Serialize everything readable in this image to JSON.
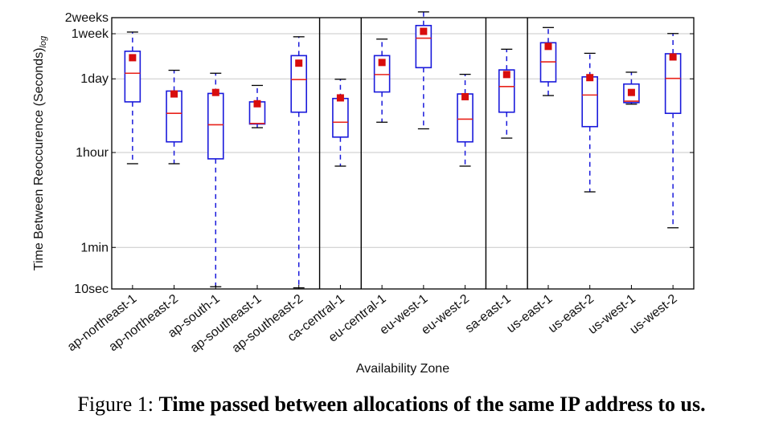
{
  "chart_data": {
    "type": "box",
    "title": "",
    "xlabel": "Availability Zone",
    "ylabel": "Time Between Reoccurence (Seconds)",
    "ylabel_sub": "log",
    "yscale": "log",
    "ylim_seconds": [
      10,
      1209600
    ],
    "y_ticks": [
      {
        "label": "10sec",
        "seconds": 10
      },
      {
        "label": "1min",
        "seconds": 60
      },
      {
        "label": "1hour",
        "seconds": 3600
      },
      {
        "label": "1day",
        "seconds": 86400
      },
      {
        "label": "1week",
        "seconds": 604800
      },
      {
        "label": "2weeks",
        "seconds": 1209600
      }
    ],
    "grid": true,
    "group_separators_after": [
      "ap-southeast-2",
      "ca-central-1",
      "eu-west-2",
      "sa-east-1"
    ],
    "box_color": "#1a1adb",
    "median_color": "#e8221a",
    "mean_marker_color": "#d80d0d",
    "boxes": [
      {
        "zone": "ap-northeast-1",
        "whisker_low": 2220,
        "q1": 32000,
        "median": 110000,
        "q3": 284000,
        "whisker_high": 650000,
        "mean": 215000
      },
      {
        "zone": "ap-northeast-2",
        "whisker_low": 2220,
        "q1": 5700,
        "median": 19500,
        "q3": 51000,
        "whisker_high": 125000,
        "mean": 45000
      },
      {
        "zone": "ap-south-1",
        "whisker_low": 11,
        "q1": 2740,
        "median": 11900,
        "q3": 46000,
        "whisker_high": 110000,
        "mean": 48000
      },
      {
        "zone": "ap-southeast-1",
        "whisker_low": 10500,
        "q1": 12300,
        "median": 12600,
        "q3": 32000,
        "whisker_high": 65000,
        "mean": 29500
      },
      {
        "zone": "ap-southeast-2",
        "whisker_low": 10.5,
        "q1": 20500,
        "median": 84000,
        "q3": 235000,
        "whisker_high": 530000,
        "mean": 170000
      },
      {
        "zone": "ca-central-1",
        "whisker_low": 2000,
        "q1": 7000,
        "median": 13300,
        "q3": 37000,
        "whisker_high": 85000,
        "mean": 38000
      },
      {
        "zone": "eu-central-1",
        "whisker_low": 13300,
        "q1": 49000,
        "median": 104000,
        "q3": 235000,
        "whisker_high": 480000,
        "mean": 175000
      },
      {
        "zone": "eu-west-1",
        "whisker_low": 10000,
        "q1": 140000,
        "median": 500000,
        "q3": 862000,
        "whisker_high": 1550000,
        "mean": 670000
      },
      {
        "zone": "eu-west-2",
        "whisker_low": 2000,
        "q1": 5700,
        "median": 15200,
        "q3": 45000,
        "whisker_high": 105000,
        "mean": 40000
      },
      {
        "zone": "sa-east-1",
        "whisker_low": 6700,
        "q1": 20500,
        "median": 62000,
        "q3": 127000,
        "whisker_high": 310000,
        "mean": 104000
      },
      {
        "zone": "us-east-1",
        "whisker_low": 42000,
        "q1": 76000,
        "median": 180000,
        "q3": 410000,
        "whisker_high": 790000,
        "mean": 350000
      },
      {
        "zone": "us-east-2",
        "whisker_low": 660,
        "q1": 11000,
        "median": 43000,
        "q3": 94000,
        "whisker_high": 260000,
        "mean": 91000
      },
      {
        "zone": "us-west-1",
        "whisker_low": 29000,
        "q1": 31000,
        "median": 33000,
        "q3": 69000,
        "whisker_high": 115000,
        "mean": 48000
      },
      {
        "zone": "us-west-2",
        "whisker_low": 140,
        "q1": 19500,
        "median": 88000,
        "q3": 255000,
        "whisker_high": 610000,
        "mean": 222000
      }
    ]
  },
  "caption": {
    "prefix": "Figure 1: ",
    "text": "Time passed between allocations of the same IP address to us."
  }
}
